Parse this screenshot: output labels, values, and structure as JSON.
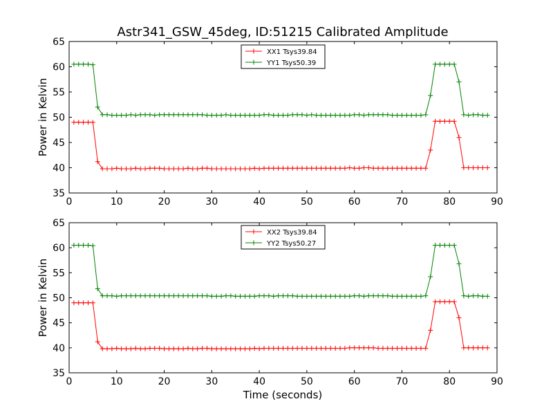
{
  "title": "Astr341_GSW_45deg, ID:51215 Calibrated Amplitude",
  "xlabel": "Time (seconds)",
  "chart_data": [
    {
      "type": "line",
      "ylabel": "Power in Kelvin",
      "xlim": [
        0,
        90
      ],
      "ylim": [
        35,
        65
      ],
      "xticks": [
        "0",
        "10",
        "20",
        "30",
        "40",
        "50",
        "60",
        "70",
        "80",
        "90"
      ],
      "yticks": [
        "35",
        "40",
        "45",
        "50",
        "55",
        "60",
        "65"
      ],
      "legend_position": "top-center",
      "x": [
        1,
        2,
        3,
        4,
        5,
        6,
        7,
        8,
        9,
        10,
        11,
        12,
        13,
        14,
        15,
        16,
        17,
        18,
        19,
        20,
        21,
        22,
        23,
        24,
        25,
        26,
        27,
        28,
        29,
        30,
        31,
        32,
        33,
        34,
        35,
        36,
        37,
        38,
        39,
        40,
        41,
        42,
        43,
        44,
        45,
        46,
        47,
        48,
        49,
        50,
        51,
        52,
        53,
        54,
        55,
        56,
        57,
        58,
        59,
        60,
        61,
        62,
        63,
        64,
        65,
        66,
        67,
        68,
        69,
        70,
        71,
        72,
        73,
        74,
        75,
        76,
        77,
        78,
        79,
        80,
        81,
        82,
        83,
        84,
        85,
        86,
        87,
        88
      ],
      "series": [
        {
          "name": "XX1 Tsys39.84",
          "color": "#ff0000",
          "values": [
            49.0,
            49.0,
            49.0,
            49.0,
            49.0,
            41.2,
            39.8,
            39.8,
            39.8,
            39.9,
            39.8,
            39.8,
            39.8,
            39.9,
            39.8,
            39.8,
            39.9,
            39.9,
            39.9,
            39.8,
            39.8,
            39.8,
            39.8,
            39.8,
            39.9,
            39.8,
            39.8,
            39.9,
            39.9,
            39.8,
            39.8,
            39.8,
            39.8,
            39.8,
            39.8,
            39.8,
            39.8,
            39.8,
            39.9,
            39.8,
            39.9,
            39.9,
            39.9,
            39.9,
            39.9,
            39.9,
            39.9,
            39.9,
            39.9,
            39.9,
            39.9,
            39.9,
            39.9,
            39.9,
            39.9,
            39.9,
            39.9,
            39.9,
            40.0,
            39.9,
            39.9,
            40.0,
            40.0,
            39.9,
            39.9,
            39.9,
            39.9,
            39.9,
            39.9,
            39.9,
            39.9,
            39.9,
            39.9,
            39.9,
            39.9,
            43.5,
            49.2,
            49.2,
            49.2,
            49.2,
            49.2,
            46.0,
            40.0,
            40.0,
            40.0,
            40.0,
            40.0,
            40.0
          ]
        },
        {
          "name": "YY1 Tsys50.39",
          "color": "#008000",
          "values": [
            60.5,
            60.5,
            60.5,
            60.5,
            60.4,
            52.0,
            50.5,
            50.5,
            50.4,
            50.4,
            50.4,
            50.4,
            50.5,
            50.4,
            50.5,
            50.5,
            50.5,
            50.4,
            50.5,
            50.5,
            50.5,
            50.5,
            50.5,
            50.5,
            50.5,
            50.5,
            50.5,
            50.5,
            50.4,
            50.4,
            50.4,
            50.4,
            50.5,
            50.4,
            50.4,
            50.4,
            50.4,
            50.4,
            50.4,
            50.4,
            50.5,
            50.5,
            50.4,
            50.4,
            50.4,
            50.4,
            50.5,
            50.5,
            50.5,
            50.4,
            50.5,
            50.4,
            50.4,
            50.4,
            50.4,
            50.4,
            50.4,
            50.4,
            50.4,
            50.5,
            50.5,
            50.4,
            50.5,
            50.5,
            50.5,
            50.5,
            50.5,
            50.4,
            50.4,
            50.4,
            50.4,
            50.4,
            50.4,
            50.4,
            50.5,
            54.3,
            60.5,
            60.5,
            60.5,
            60.5,
            60.5,
            57.0,
            50.5,
            50.4,
            50.5,
            50.5,
            50.4,
            50.4
          ]
        }
      ]
    },
    {
      "type": "line",
      "ylabel": "Power in Kelvin",
      "xlim": [
        0,
        90
      ],
      "ylim": [
        35,
        65
      ],
      "xticks": [
        "0",
        "10",
        "20",
        "30",
        "40",
        "50",
        "60",
        "70",
        "80",
        "90"
      ],
      "yticks": [
        "35",
        "40",
        "45",
        "50",
        "55",
        "60",
        "65"
      ],
      "legend_position": "top-center",
      "x": [
        1,
        2,
        3,
        4,
        5,
        6,
        7,
        8,
        9,
        10,
        11,
        12,
        13,
        14,
        15,
        16,
        17,
        18,
        19,
        20,
        21,
        22,
        23,
        24,
        25,
        26,
        27,
        28,
        29,
        30,
        31,
        32,
        33,
        34,
        35,
        36,
        37,
        38,
        39,
        40,
        41,
        42,
        43,
        44,
        45,
        46,
        47,
        48,
        49,
        50,
        51,
        52,
        53,
        54,
        55,
        56,
        57,
        58,
        59,
        60,
        61,
        62,
        63,
        64,
        65,
        66,
        67,
        68,
        69,
        70,
        71,
        72,
        73,
        74,
        75,
        76,
        77,
        78,
        79,
        80,
        81,
        82,
        83,
        84,
        85,
        86,
        87,
        88
      ],
      "series": [
        {
          "name": "XX2 Tsys39.84",
          "color": "#ff0000",
          "values": [
            49.0,
            49.0,
            49.0,
            49.0,
            49.0,
            41.2,
            39.8,
            39.8,
            39.8,
            39.9,
            39.8,
            39.8,
            39.8,
            39.9,
            39.8,
            39.8,
            39.9,
            39.9,
            39.9,
            39.8,
            39.8,
            39.8,
            39.8,
            39.8,
            39.9,
            39.8,
            39.8,
            39.9,
            39.9,
            39.8,
            39.8,
            39.8,
            39.8,
            39.8,
            39.8,
            39.8,
            39.8,
            39.8,
            39.9,
            39.8,
            39.9,
            39.9,
            39.9,
            39.9,
            39.9,
            39.9,
            39.9,
            39.9,
            39.9,
            39.9,
            39.9,
            39.9,
            39.9,
            39.9,
            39.9,
            39.9,
            39.9,
            39.9,
            40.0,
            40.0,
            40.0,
            40.0,
            40.0,
            40.0,
            39.9,
            39.9,
            39.9,
            39.9,
            39.9,
            39.9,
            39.9,
            39.9,
            39.9,
            39.9,
            39.9,
            43.5,
            49.2,
            49.2,
            49.2,
            49.2,
            49.2,
            46.0,
            40.0,
            40.0,
            40.0,
            40.0,
            40.0,
            40.0
          ]
        },
        {
          "name": "YY2 Tsys50.27",
          "color": "#008000",
          "values": [
            60.5,
            60.5,
            60.5,
            60.5,
            60.4,
            51.8,
            50.4,
            50.4,
            50.4,
            50.3,
            50.4,
            50.4,
            50.4,
            50.4,
            50.4,
            50.4,
            50.4,
            50.4,
            50.4,
            50.4,
            50.4,
            50.4,
            50.4,
            50.4,
            50.4,
            50.4,
            50.4,
            50.4,
            50.4,
            50.3,
            50.3,
            50.3,
            50.4,
            50.4,
            50.3,
            50.3,
            50.3,
            50.3,
            50.3,
            50.4,
            50.4,
            50.4,
            50.3,
            50.4,
            50.4,
            50.4,
            50.4,
            50.3,
            50.3,
            50.3,
            50.3,
            50.3,
            50.3,
            50.3,
            50.3,
            50.3,
            50.3,
            50.3,
            50.3,
            50.4,
            50.4,
            50.3,
            50.4,
            50.4,
            50.4,
            50.4,
            50.4,
            50.3,
            50.3,
            50.3,
            50.3,
            50.3,
            50.3,
            50.3,
            50.4,
            54.2,
            60.5,
            60.5,
            60.5,
            60.5,
            60.5,
            56.8,
            50.4,
            50.3,
            50.4,
            50.4,
            50.3,
            50.3
          ]
        }
      ]
    }
  ]
}
